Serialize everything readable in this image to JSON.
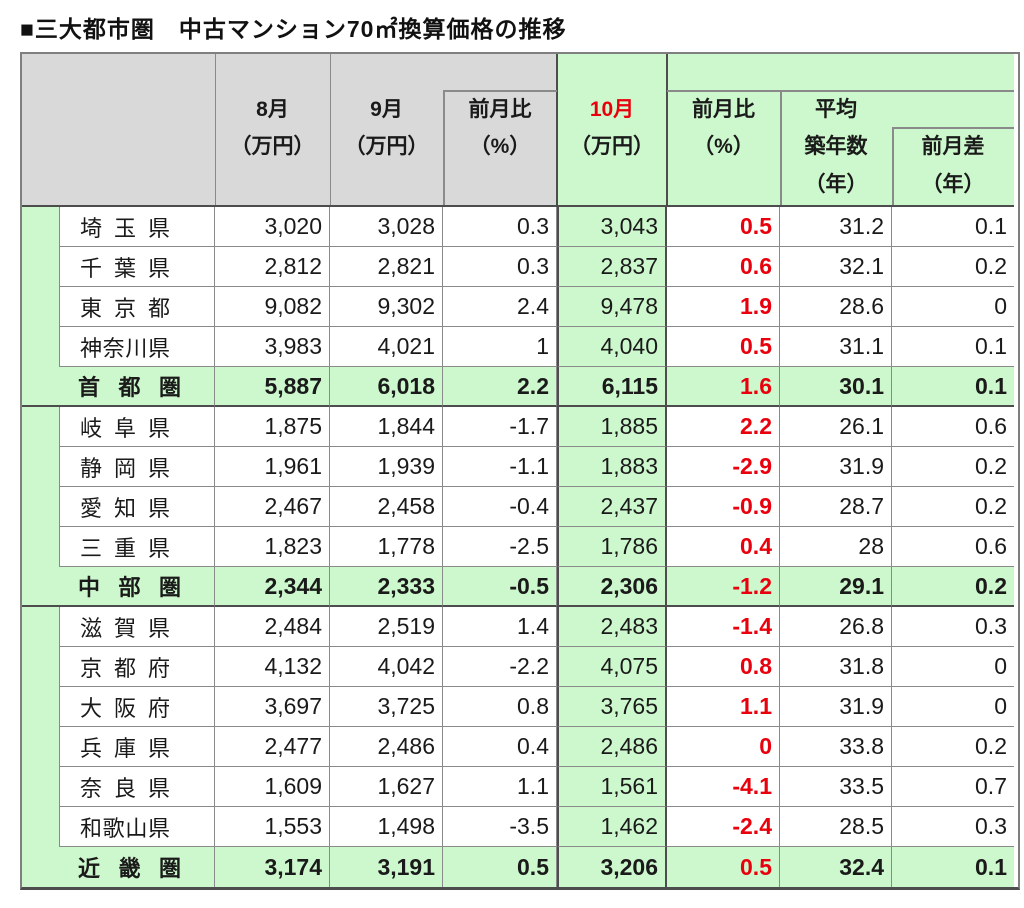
{
  "title": "■三大都市圏　中古マンション70㎡換算価格の推移",
  "colors": {
    "header_gray": "#d9d9d9",
    "green": "#cdf8cd",
    "red": "#e8000d",
    "border_gray": "#8a8a8a",
    "border_dark": "#4d4d4d"
  },
  "header": {
    "month_aug": {
      "l1": "8月",
      "l2": "（万円）"
    },
    "month_sep": {
      "l1": "9月",
      "l2": "（万円）"
    },
    "mom_sep": {
      "l1": "前月比",
      "l2": "（%）"
    },
    "month_oct": {
      "l1": "10月",
      "l2": "（万円）"
    },
    "mom_oct": {
      "l1": "前月比",
      "l2": "（%）"
    },
    "avg_age": {
      "l1": "平均",
      "l2": "築年数",
      "l3": "（年）"
    },
    "mom_diff": {
      "l1": "前月差",
      "l2": "（年）"
    }
  },
  "groups": [
    {
      "rows": [
        {
          "name": "埼玉県",
          "values": [
            "3,020",
            "3,028",
            "0.3",
            "3,043",
            "0.5",
            "31.2",
            "0.1"
          ]
        },
        {
          "name": "千葉県",
          "values": [
            "2,812",
            "2,821",
            "0.3",
            "2,837",
            "0.6",
            "32.1",
            "0.2"
          ]
        },
        {
          "name": "東京都",
          "values": [
            "9,082",
            "9,302",
            "2.4",
            "9,478",
            "1.9",
            "28.6",
            "0"
          ]
        },
        {
          "name": "神奈川県",
          "values": [
            "3,983",
            "4,021",
            "1",
            "4,040",
            "0.5",
            "31.1",
            "0.1"
          ]
        }
      ],
      "summary": {
        "name": "首都圏",
        "values": [
          "5,887",
          "6,018",
          "2.2",
          "6,115",
          "1.6",
          "30.1",
          "0.1"
        ]
      }
    },
    {
      "rows": [
        {
          "name": "岐阜県",
          "values": [
            "1,875",
            "1,844",
            "-1.7",
            "1,885",
            "2.2",
            "26.1",
            "0.6"
          ]
        },
        {
          "name": "静岡県",
          "values": [
            "1,961",
            "1,939",
            "-1.1",
            "1,883",
            "-2.9",
            "31.9",
            "0.2"
          ]
        },
        {
          "name": "愛知県",
          "values": [
            "2,467",
            "2,458",
            "-0.4",
            "2,437",
            "-0.9",
            "28.7",
            "0.2"
          ]
        },
        {
          "name": "三重県",
          "values": [
            "1,823",
            "1,778",
            "-2.5",
            "1,786",
            "0.4",
            "28",
            "0.6"
          ]
        }
      ],
      "summary": {
        "name": "中部圏",
        "values": [
          "2,344",
          "2,333",
          "-0.5",
          "2,306",
          "-1.2",
          "29.1",
          "0.2"
        ]
      }
    },
    {
      "rows": [
        {
          "name": "滋賀県",
          "values": [
            "2,484",
            "2,519",
            "1.4",
            "2,483",
            "-1.4",
            "26.8",
            "0.3"
          ]
        },
        {
          "name": "京都府",
          "values": [
            "4,132",
            "4,042",
            "-2.2",
            "4,075",
            "0.8",
            "31.8",
            "0"
          ]
        },
        {
          "name": "大阪府",
          "values": [
            "3,697",
            "3,725",
            "0.8",
            "3,765",
            "1.1",
            "31.9",
            "0"
          ]
        },
        {
          "name": "兵庫県",
          "values": [
            "2,477",
            "2,486",
            "0.4",
            "2,486",
            "0",
            "33.8",
            "0.2"
          ]
        },
        {
          "name": "奈良県",
          "values": [
            "1,609",
            "1,627",
            "1.1",
            "1,561",
            "-4.1",
            "33.5",
            "0.7"
          ]
        },
        {
          "name": "和歌山県",
          "values": [
            "1,553",
            "1,498",
            "-3.5",
            "1,462",
            "-2.4",
            "28.5",
            "0.3"
          ]
        }
      ],
      "summary": {
        "name": "近畿圏",
        "values": [
          "3,174",
          "3,191",
          "0.5",
          "3,206",
          "0.5",
          "32.4",
          "0.1"
        ]
      }
    }
  ]
}
